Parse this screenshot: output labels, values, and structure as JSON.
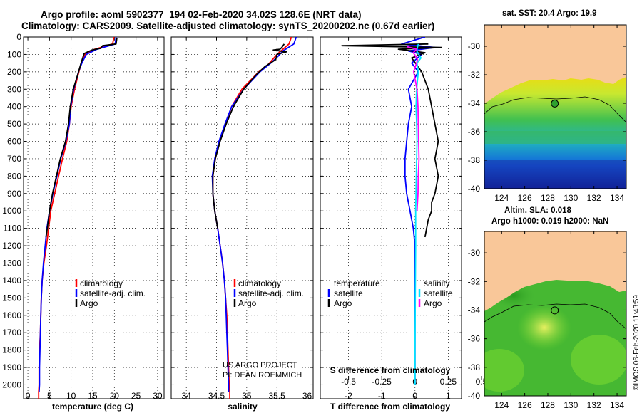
{
  "header": {
    "title_line1": "Argo profile: aoml 5902377_194 02-Feb-2020 34.02S 128.6E (NRT data)",
    "title_line2": "Climatology: CARS2009. Satellite-adjusted climatology: synTS_20200202.nc (0.67d earlier)"
  },
  "colors": {
    "climatology": "#ff0000",
    "satellite": "#0000ff",
    "argo": "#000000",
    "sal_satellite": "#00e5ff",
    "sal_argo": "#ff00ff",
    "land": "#f9c799"
  },
  "chart_data": [
    {
      "type": "line",
      "id": "temperature",
      "xlabel": "temperature (deg C)",
      "xlim": [
        -1,
        31.5
      ],
      "xticks": [
        0,
        5,
        10,
        15,
        20,
        25,
        30
      ],
      "ylim": [
        0,
        2080
      ],
      "yticks": [
        0,
        100,
        200,
        300,
        400,
        500,
        600,
        700,
        800,
        900,
        1000,
        1100,
        1200,
        1300,
        1400,
        1500,
        1600,
        1700,
        1800,
        1900,
        2000
      ],
      "legend": [
        "climatology",
        "satellite-adj. clim.",
        "Argo"
      ],
      "series": [
        {
          "name": "climatology",
          "color": "#ff0000",
          "x": [
            19.9,
            19.6,
            15.5,
            13.2,
            12.4,
            11.8,
            10.8,
            10.0,
            9.6,
            9.0,
            8.0,
            7.1,
            6.2,
            5.3,
            4.8,
            4.3,
            3.7,
            3.3,
            3.1,
            3.0,
            2.9,
            2.7,
            2.6,
            2.6,
            2.5,
            2.5
          ],
          "y": [
            0,
            40,
            70,
            100,
            150,
            200,
            300,
            400,
            500,
            600,
            700,
            800,
            900,
            1000,
            1100,
            1200,
            1300,
            1400,
            1500,
            1600,
            1700,
            1800,
            1900,
            2000,
            2040,
            2080
          ]
        },
        {
          "name": "satellite-adj. clim.",
          "color": "#0000ff",
          "x": [
            20.4,
            20.2,
            16.0,
            13.5,
            12.5,
            11.7,
            10.6,
            9.9,
            9.6,
            8.8,
            7.6,
            6.7,
            5.8,
            5.0,
            4.4,
            4.0,
            3.6,
            3.3,
            3.1,
            3.0,
            2.9,
            2.8,
            2.7,
            2.7,
            2.6
          ],
          "y": [
            0,
            40,
            70,
            100,
            150,
            200,
            300,
            400,
            500,
            600,
            700,
            800,
            900,
            1000,
            1100,
            1200,
            1300,
            1400,
            1500,
            1600,
            1700,
            1800,
            1900,
            2000,
            2040
          ]
        },
        {
          "name": "Argo",
          "color": "#000000",
          "x": [
            20.6,
            20.4,
            17.3,
            16.8,
            14.8,
            13.0,
            12.3,
            11.6,
            10.5,
            9.8,
            9.4,
            8.7,
            7.5,
            6.6,
            5.7,
            5.0,
            4.5,
            4.2
          ],
          "y": [
            5,
            40,
            50,
            65,
            75,
            95,
            150,
            210,
            300,
            400,
            500,
            600,
            700,
            800,
            900,
            1000,
            1100,
            1150
          ]
        }
      ]
    },
    {
      "type": "line",
      "id": "salinity",
      "xlabel": "salinity",
      "xlim": [
        33.75,
        36.1
      ],
      "xticks": [
        34,
        34.5,
        35,
        35.5,
        36
      ],
      "ylim": [
        0,
        2080
      ],
      "legend": [
        "climatology",
        "satellite-adj. clim.",
        "Argo"
      ],
      "annotations": [
        "US ARGO PROJECT",
        "PI: DEAN ROEMMICH"
      ],
      "series": [
        {
          "name": "climatology",
          "color": "#ff0000",
          "x": [
            35.74,
            35.7,
            35.5,
            35.45,
            35.35,
            35.2,
            34.92,
            34.75,
            34.65,
            34.55,
            34.48,
            34.44,
            34.44,
            34.47,
            34.52,
            34.56,
            34.6,
            34.63,
            34.65,
            34.67,
            34.68,
            34.69,
            34.7,
            34.71,
            34.72,
            34.72
          ],
          "y": [
            0,
            40,
            100,
            120,
            160,
            200,
            300,
            400,
            500,
            600,
            700,
            800,
            900,
            1000,
            1100,
            1200,
            1300,
            1400,
            1500,
            1600,
            1700,
            1800,
            1900,
            2000,
            2040,
            2080
          ]
        },
        {
          "name": "satellite-adj. clim.",
          "color": "#0000ff",
          "x": [
            35.82,
            35.78,
            35.6,
            35.52,
            35.4,
            35.22,
            34.95,
            34.75,
            34.64,
            34.54,
            34.47,
            34.43,
            34.44,
            34.47,
            34.52,
            34.56,
            34.6,
            34.63,
            34.65,
            34.66,
            34.67,
            34.68,
            34.69,
            34.7,
            34.7
          ],
          "y": [
            0,
            40,
            80,
            110,
            150,
            200,
            300,
            400,
            500,
            600,
            700,
            800,
            900,
            1000,
            1100,
            1200,
            1300,
            1400,
            1500,
            1600,
            1700,
            1800,
            1900,
            2000,
            2040
          ]
        },
        {
          "name": "Argo",
          "color": "#000000",
          "x": [
            35.62,
            35.58,
            35.55,
            35.44,
            35.66,
            35.5,
            35.48,
            35.3,
            35.15,
            34.95,
            34.78,
            34.66,
            34.56,
            34.48,
            34.44,
            34.44,
            34.47,
            34.52
          ],
          "y": [
            40,
            60,
            70,
            75,
            85,
            100,
            130,
            170,
            220,
            300,
            400,
            500,
            600,
            700,
            800,
            900,
            1000,
            1100
          ]
        }
      ]
    },
    {
      "type": "line",
      "id": "difference",
      "xlabel": "T difference from climatology",
      "xlabel2": "S difference from climatology",
      "xlim": [
        -2.85,
        1.4
      ],
      "xticks": [
        -2,
        -1,
        0,
        1
      ],
      "sticks": [
        "-0.5",
        "-0.25",
        "0",
        "0.25",
        "0.5"
      ],
      "ylim": [
        0,
        2080
      ],
      "legend_temperature": {
        "title": "temperature",
        "items": [
          "satellite",
          "Argo"
        ]
      },
      "legend_salinity": {
        "title": "salinity",
        "items": [
          "satellite",
          "Argo"
        ]
      },
      "series": [
        {
          "name": "T satellite",
          "color": "#0000ff",
          "x": [
            0.3,
            -0.4,
            0.6,
            -0.2,
            0.2,
            -0.1,
            0.1,
            -0.2,
            -0.1,
            -0.2,
            -0.25,
            -0.3,
            -0.3,
            -0.25,
            -0.15,
            -0.05,
            0,
            0,
            0,
            0,
            0,
            0
          ],
          "y": [
            0,
            40,
            60,
            80,
            100,
            150,
            200,
            300,
            400,
            500,
            600,
            700,
            800,
            900,
            1000,
            1100,
            1200,
            1300,
            1500,
            1700,
            1900,
            2000
          ]
        },
        {
          "name": "T Argo",
          "color": "#000000",
          "x": [
            0.4,
            -2.2,
            0.8,
            -0.5,
            0.3,
            -0.1,
            0.2,
            0.4,
            0.5,
            0.6,
            0.7,
            0.6,
            0.7,
            0.6,
            0.5,
            0.5,
            0.4,
            0.35,
            0.3
          ],
          "y": [
            40,
            50,
            60,
            70,
            90,
            120,
            200,
            300,
            400,
            500,
            600,
            700,
            800,
            900,
            950,
            1000,
            1050,
            1100,
            1150
          ]
        },
        {
          "name": "S satellite",
          "color": "#00e5ff",
          "x": [
            0.1,
            0.05,
            0.18,
            0.06,
            0.1,
            0.05,
            0.03,
            0.05,
            0.06,
            0.05,
            0.04,
            0.03,
            0.02,
            0.02,
            0.01,
            0,
            0
          ],
          "y": [
            40,
            80,
            120,
            150,
            200,
            300,
            400,
            500,
            600,
            700,
            800,
            900,
            1000,
            1200,
            1500,
            1800,
            2000
          ]
        },
        {
          "name": "S Argo",
          "color": "#ff00ff",
          "x": [
            -0.25,
            0.05,
            -0.05,
            0.08,
            -0.04,
            0.06,
            0.09,
            0.1,
            0.11,
            0.12,
            0.1,
            0.09,
            0.06
          ],
          "y": [
            55,
            70,
            90,
            130,
            200,
            300,
            400,
            500,
            600,
            700,
            800,
            900,
            1000
          ]
        }
      ]
    },
    {
      "type": "heatmap",
      "id": "sst_map",
      "title": "sat. SST: 20.4 Argo: 19.9",
      "xlim": [
        122.5,
        134.8
      ],
      "xticks": [
        124,
        126,
        128,
        130,
        132,
        134
      ],
      "ylim": [
        -40,
        -28.5
      ],
      "yticks": [
        -30,
        -32,
        -34,
        -36,
        -38,
        -40
      ],
      "marker": {
        "lon": 128.6,
        "lat": -34.02
      }
    },
    {
      "type": "heatmap",
      "id": "sla_map",
      "title": "Altim. SLA: 0.018",
      "subtitle": "Argo h1000: 0.019 h2000: NaN",
      "xlim": [
        122.5,
        134.8
      ],
      "xticks": [
        124,
        126,
        128,
        130,
        132,
        134
      ],
      "ylim": [
        -40,
        -28.5
      ],
      "yticks": [
        -30,
        -32,
        -34,
        -36,
        -38,
        -40
      ],
      "marker": {
        "lon": 128.6,
        "lat": -34.02
      }
    }
  ],
  "footer": {
    "stamp": "©IMOS 06-Feb-2020 11:43:59"
  }
}
